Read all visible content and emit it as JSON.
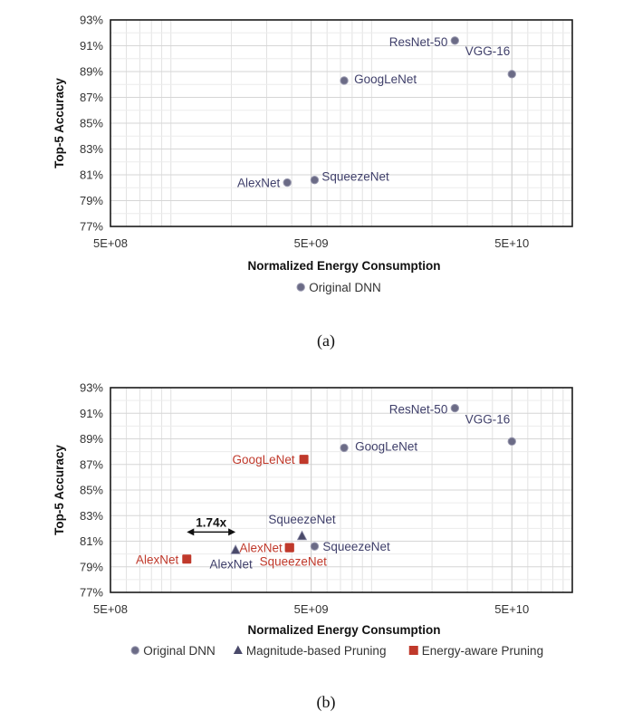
{
  "chart_data": [
    {
      "type": "scatter",
      "caption": "(a)",
      "xlabel": "Normalized Energy Consumption",
      "ylabel": "Top-5 Accuracy",
      "x_scale": "log",
      "xlim": [
        500000000,
        100000000000
      ],
      "x_ticks": [
        500000000,
        5000000000,
        50000000000
      ],
      "x_tick_labels": [
        "5E+08",
        "5E+09",
        "5E+10"
      ],
      "ylim": [
        77,
        93
      ],
      "y_ticks": [
        77,
        79,
        81,
        83,
        85,
        87,
        89,
        91,
        93
      ],
      "y_tick_labels": [
        "77%",
        "79%",
        "81%",
        "83%",
        "85%",
        "87%",
        "89%",
        "91%",
        "93%"
      ],
      "grid": true,
      "legend_position": "bottom",
      "series": [
        {
          "name": "Original DNN",
          "marker": "circle",
          "color": "#6b6b86",
          "label_color": "#3f3f6a",
          "points": [
            {
              "label": "AlexNet",
              "x": 3800000000,
              "y": 80.4
            },
            {
              "label": "SqueezeNet",
              "x": 5200000000,
              "y": 80.6
            },
            {
              "label": "GoogLeNet",
              "x": 7300000000,
              "y": 88.3
            },
            {
              "label": "ResNet-50",
              "x": 26000000000,
              "y": 91.4
            },
            {
              "label": "VGG-16",
              "x": 50000000000,
              "y": 88.8
            }
          ]
        }
      ]
    },
    {
      "type": "scatter",
      "caption": "(b)",
      "xlabel": "Normalized Energy Consumption",
      "ylabel": "Top-5 Accuracy",
      "x_scale": "log",
      "xlim": [
        500000000,
        100000000000
      ],
      "x_ticks": [
        500000000,
        5000000000,
        50000000000
      ],
      "x_tick_labels": [
        "5E+08",
        "5E+09",
        "5E+10"
      ],
      "ylim": [
        77,
        93
      ],
      "y_ticks": [
        77,
        79,
        81,
        83,
        85,
        87,
        89,
        91,
        93
      ],
      "y_tick_labels": [
        "77%",
        "79%",
        "81%",
        "83%",
        "85%",
        "87%",
        "89%",
        "91%",
        "93%"
      ],
      "grid": true,
      "legend_position": "bottom",
      "series": [
        {
          "name": "Original DNN",
          "marker": "circle",
          "color": "#6b6b86",
          "label_color": "#3f3f6a",
          "points": [
            {
              "label": "SqueezeNet",
              "x": 5200000000,
              "y": 80.6
            },
            {
              "label": "GoogLeNet",
              "x": 7300000000,
              "y": 88.3
            },
            {
              "label": "ResNet-50",
              "x": 26000000000,
              "y": 91.4
            },
            {
              "label": "VGG-16",
              "x": 50000000000,
              "y": 88.8
            }
          ]
        },
        {
          "name": "Magnitude-based Pruning",
          "marker": "triangle",
          "color": "#4a4a6a",
          "label_color": "#3f3f6a",
          "points": [
            {
              "label": "AlexNet",
              "x": 2100000000,
              "y": 80.3
            },
            {
              "label": "SqueezeNet",
              "x": 4500000000,
              "y": 81.4
            }
          ]
        },
        {
          "name": "Energy-aware Pruning",
          "marker": "square",
          "color": "#c0392b",
          "label_color": "#c0392b",
          "points": [
            {
              "label": "AlexNet",
              "x": 1200000000,
              "y": 79.6
            },
            {
              "label": "AlexNet",
              "x": 3900000000,
              "y": 80.5
            },
            {
              "label": "SqueezeNet",
              "x": 3900000000,
              "y": 80.5
            },
            {
              "label": "GoogLeNet",
              "x": 4600000000,
              "y": 87.4
            }
          ]
        }
      ],
      "annotation": {
        "text": "1.74x",
        "from_x": 1200000000,
        "to_x": 2100000000,
        "y": 82.0
      }
    }
  ]
}
